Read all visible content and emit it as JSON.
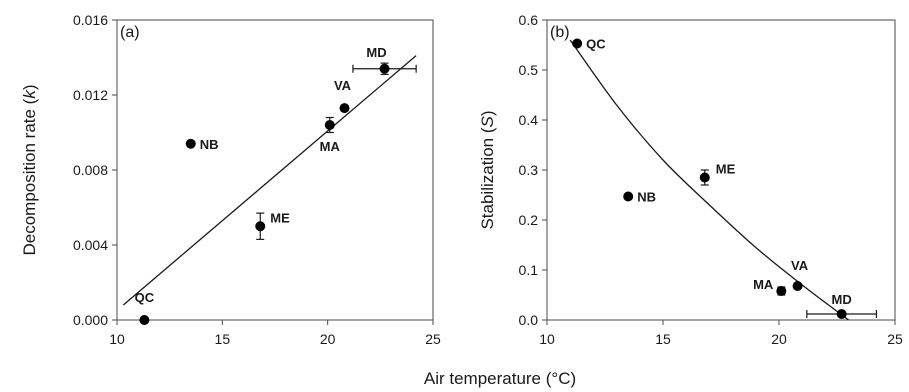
{
  "figure": {
    "shared_xlabel": "Air temperature (°C)"
  },
  "chart_data": [
    {
      "type": "scatter",
      "panel_label": "(a)",
      "xlabel": "",
      "ylabel": "Decomposition rate (k)",
      "ylabel_parts": {
        "pre": "Decomposition rate (",
        "italic": "k",
        "post": ")"
      },
      "xlim": [
        10,
        25
      ],
      "ylim": [
        0,
        0.016
      ],
      "xticks": [
        10,
        15,
        20,
        25
      ],
      "xtick_labels": [
        "10",
        "15",
        "20",
        "25"
      ],
      "yticks": [
        0,
        0.004,
        0.008,
        0.012,
        0.016
      ],
      "ytick_labels": [
        "0.000",
        "0.004",
        "0.008",
        "0.012",
        "0.016"
      ],
      "grid": false,
      "points": [
        {
          "label": "QC",
          "x": 11.3,
          "y": 0.0,
          "yerr": 0.0,
          "xerr": 0.0
        },
        {
          "label": "NB",
          "x": 13.5,
          "y": 0.0094,
          "yerr": 0.0,
          "xerr": 0.0
        },
        {
          "label": "ME",
          "x": 16.8,
          "y": 0.005,
          "yerr": 0.0007,
          "xerr": 0.0
        },
        {
          "label": "MA",
          "x": 20.1,
          "y": 0.0104,
          "yerr": 0.0004,
          "xerr": 0.0
        },
        {
          "label": "VA",
          "x": 20.8,
          "y": 0.0113,
          "yerr": 0.0,
          "xerr": 0.0
        },
        {
          "label": "MD",
          "x": 22.7,
          "y": 0.0134,
          "yerr": 0.0003,
          "xerr": 1.5
        }
      ],
      "trendline": {
        "type": "linear",
        "from": [
          10.3,
          0.0008
        ],
        "to": [
          24.2,
          0.0141
        ]
      }
    },
    {
      "type": "scatter",
      "panel_label": "(b)",
      "xlabel": "",
      "ylabel": "Stabilization (S)",
      "ylabel_parts": {
        "pre": "Stabilization (",
        "italic": "S",
        "post": ")"
      },
      "xlim": [
        10,
        25
      ],
      "ylim": [
        0,
        0.6
      ],
      "xticks": [
        10,
        15,
        20,
        25
      ],
      "xtick_labels": [
        "10",
        "15",
        "20",
        "25"
      ],
      "yticks": [
        0,
        0.1,
        0.2,
        0.3,
        0.4,
        0.5,
        0.6
      ],
      "ytick_labels": [
        "0.0",
        "0.1",
        "0.2",
        "0.3",
        "0.4",
        "0.5",
        "0.6"
      ],
      "grid": false,
      "points": [
        {
          "label": "QC",
          "x": 11.3,
          "y": 0.553,
          "yerr": 0.0,
          "xerr": 0.0
        },
        {
          "label": "NB",
          "x": 13.5,
          "y": 0.247,
          "yerr": 0.0,
          "xerr": 0.0
        },
        {
          "label": "ME",
          "x": 16.8,
          "y": 0.285,
          "yerr": 0.015,
          "xerr": 0.0
        },
        {
          "label": "MA",
          "x": 20.1,
          "y": 0.058,
          "yerr": 0.008,
          "xerr": 0.0
        },
        {
          "label": "VA",
          "x": 20.8,
          "y": 0.068,
          "yerr": 0.0,
          "xerr": 0.0
        },
        {
          "label": "MD",
          "x": 22.7,
          "y": 0.012,
          "yerr": 0.004,
          "xerr": 1.5
        }
      ],
      "trendline": {
        "type": "curve",
        "points": [
          [
            11.0,
            0.56
          ],
          [
            13.0,
            0.43
          ],
          [
            15.0,
            0.32
          ],
          [
            17.0,
            0.23
          ],
          [
            19.0,
            0.145
          ],
          [
            21.0,
            0.07
          ],
          [
            23.0,
            0.0
          ]
        ]
      }
    }
  ]
}
